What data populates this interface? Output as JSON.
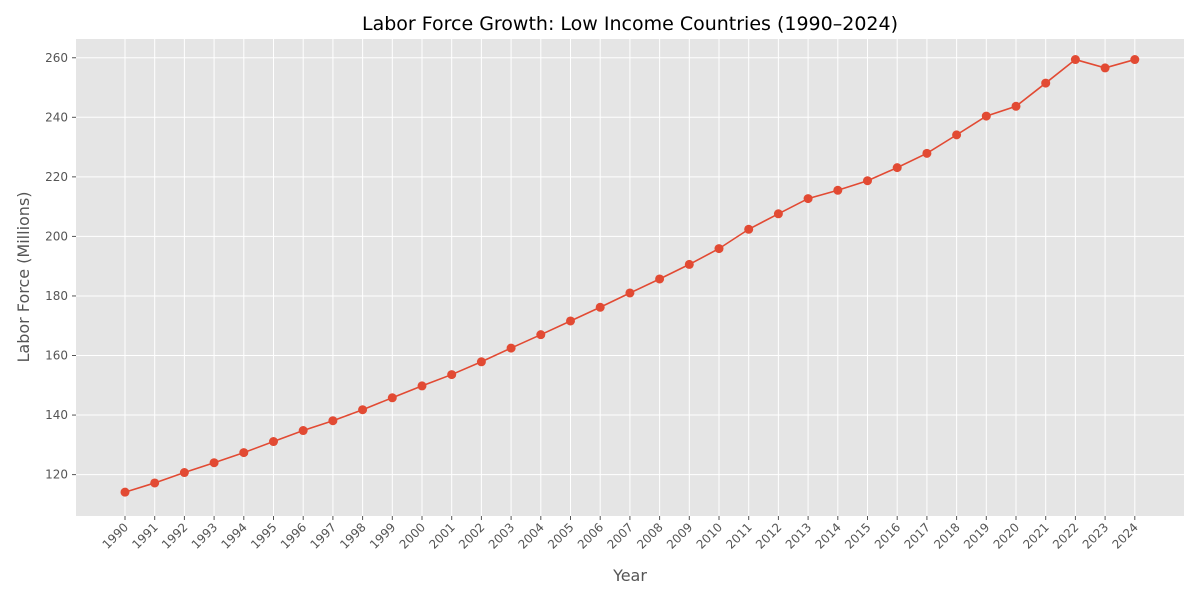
{
  "chart_data": {
    "type": "line",
    "title": "Labor Force Growth: Low Income Countries (1990–2024)",
    "xlabel": "Year",
    "ylabel": "Labor Force (Millions)",
    "categories": [
      "1990",
      "1991",
      "1992",
      "1993",
      "1994",
      "1995",
      "1996",
      "1997",
      "1998",
      "1999",
      "2000",
      "2001",
      "2002",
      "2003",
      "2004",
      "2005",
      "2006",
      "2007",
      "2008",
      "2009",
      "2010",
      "2011",
      "2012",
      "2013",
      "2014",
      "2015",
      "2016",
      "2017",
      "2018",
      "2019",
      "2020",
      "2021",
      "2022",
      "2023",
      "2024"
    ],
    "series": [
      {
        "values": [
          114.1,
          117.2,
          120.7,
          124.0,
          127.4,
          131.1,
          134.8,
          138.1,
          141.8,
          145.8,
          149.8,
          153.6,
          157.9,
          162.5,
          167.0,
          171.6,
          176.2,
          181.0,
          185.7,
          190.6,
          195.9,
          202.4,
          207.6,
          212.7,
          215.5,
          218.7,
          223.1,
          227.9,
          234.1,
          240.4,
          243.7,
          251.5,
          259.4,
          256.6,
          259.4
        ]
      }
    ],
    "ylim": [
      106.1,
      266.3
    ],
    "yticks": [
      120,
      140,
      160,
      180,
      200,
      220,
      240,
      260
    ],
    "grid": true,
    "legend": "none",
    "colors": {
      "line": "#e24a33",
      "plot_background": "#e5e5e5",
      "grid": "#ffffff",
      "text": "#555555",
      "title": "#000000"
    }
  }
}
